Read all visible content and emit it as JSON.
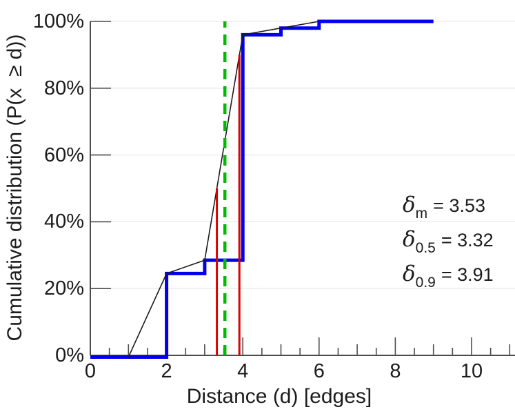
{
  "chart_data": {
    "type": "line",
    "title": "",
    "xlabel": "Distance (d) [edges]",
    "ylabel": "Cumulative distribution (P(x  ≥ d))",
    "xlim": [
      0,
      11.15
    ],
    "ylim": [
      0,
      100
    ],
    "grid": "horizontal-only",
    "x_major_ticks": [
      0,
      2,
      4,
      6,
      8,
      10
    ],
    "x_major_tick_labels": [
      "0",
      "2",
      "4",
      "6",
      "8",
      "10"
    ],
    "x_minor_tick_start": 0.5,
    "x_minor_tick_step": 0.5,
    "x_minor_tick_end": 11,
    "y_ticks": [
      0,
      20,
      40,
      60,
      80,
      100
    ],
    "y_tick_labels": [
      "0%",
      "20%",
      "40%",
      "60%",
      "80%",
      "100%"
    ],
    "series": [
      {
        "name": "empirical-cdf-step",
        "type": "step",
        "color": "#0000ee",
        "stroke_width": 5,
        "points": [
          [
            0,
            0
          ],
          [
            2,
            0
          ],
          [
            2,
            24.5
          ],
          [
            3,
            24.5
          ],
          [
            3,
            28.5
          ],
          [
            4,
            28.5
          ],
          [
            4,
            96
          ],
          [
            5,
            96
          ],
          [
            5,
            98
          ],
          [
            6,
            98
          ],
          [
            6,
            100
          ],
          [
            9,
            100
          ]
        ]
      },
      {
        "name": "interpolated-cdf",
        "type": "line",
        "color": "#1c1c1c",
        "stroke_width": 1.6,
        "points": [
          [
            1,
            0
          ],
          [
            2,
            24.5
          ],
          [
            3,
            28.5
          ],
          [
            4,
            96
          ],
          [
            5,
            98
          ],
          [
            6,
            100
          ]
        ]
      },
      {
        "name": "quantile-0.5-marker",
        "type": "vline",
        "color": "#dd0000",
        "stroke_width": 3,
        "x": 3.32,
        "y_top": 50
      },
      {
        "name": "quantile-0.9-marker",
        "type": "vline",
        "color": "#dd0000",
        "stroke_width": 3,
        "x": 3.91,
        "y_top": 90
      },
      {
        "name": "mean-marker",
        "type": "vline",
        "color": "#00bb00",
        "stroke_width": 4.5,
        "x": 3.53,
        "y_top": 100,
        "dash": [
          15,
          10
        ]
      }
    ],
    "annotations": [
      {
        "symbol": "δ",
        "sub": "m",
        "value": "= 3.53"
      },
      {
        "symbol": "δ",
        "sub": "0.5",
        "value": "= 3.32"
      },
      {
        "symbol": "δ",
        "sub": "0.9",
        "value": "= 3.91"
      }
    ]
  }
}
